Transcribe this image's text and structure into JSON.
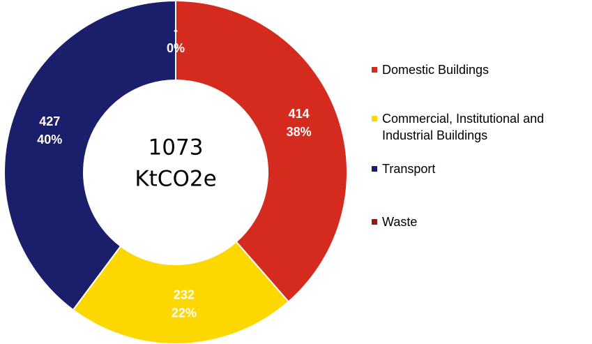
{
  "chart_data": {
    "type": "donut",
    "categories": [
      "Domestic Buildings",
      "Commercial, Institutional and Industrial Buildings",
      "Transport",
      "Waste"
    ],
    "values": [
      414,
      232,
      427,
      0
    ],
    "value_labels": [
      "414",
      "232",
      "427",
      "-"
    ],
    "percentages": [
      38,
      22,
      40,
      0
    ],
    "percentage_labels": [
      "38%",
      "22%",
      "40%",
      "0%"
    ],
    "colors": [
      "#d52b1e",
      "#fdd700",
      "#1b1f6b",
      "#8b1a1a"
    ],
    "total": 1073,
    "total_unit": "KtCO2e",
    "legend": "right"
  }
}
